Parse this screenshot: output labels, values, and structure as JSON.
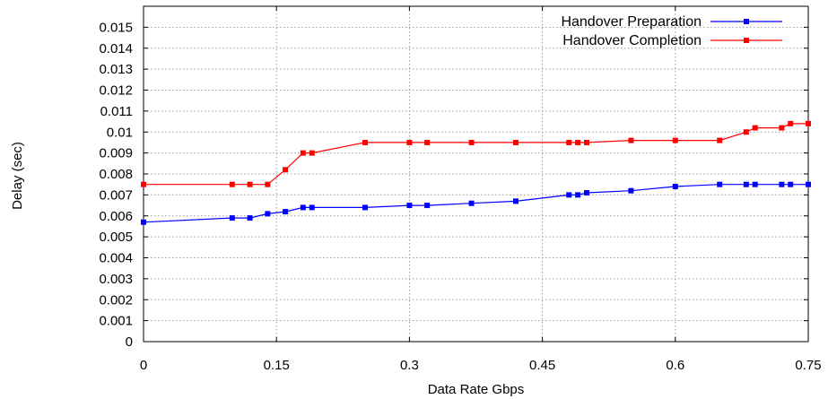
{
  "chart_data": {
    "type": "line",
    "title": "",
    "xlabel": "Data Rate Gbps",
    "ylabel": "Delay (sec)",
    "xlim": [
      0,
      0.75
    ],
    "ylim": [
      0,
      0.016
    ],
    "x_ticks": [
      "0",
      "0.15",
      "0.3",
      "0.45",
      "0.6",
      "0.75"
    ],
    "y_ticks": [
      "0",
      "0.001",
      "0.002",
      "0.003",
      "0.004",
      "0.005",
      "0.006",
      "0.007",
      "0.008",
      "0.009",
      "0.01",
      "0.011",
      "0.012",
      "0.013",
      "0.014",
      "0.015"
    ],
    "grid": true,
    "legend_position": "top-right",
    "series": [
      {
        "name": "Handover Preparation",
        "color": "#0000ff",
        "x": [
          0,
          0.1,
          0.12,
          0.14,
          0.16,
          0.18,
          0.19,
          0.25,
          0.3,
          0.32,
          0.37,
          0.42,
          0.48,
          0.49,
          0.5,
          0.55,
          0.6,
          0.65,
          0.68,
          0.69,
          0.72,
          0.73,
          0.75
        ],
        "y": [
          0.0057,
          0.0059,
          0.0059,
          0.0061,
          0.0062,
          0.0064,
          0.0064,
          0.0064,
          0.0065,
          0.0065,
          0.0066,
          0.0067,
          0.007,
          0.007,
          0.0071,
          0.0072,
          0.0074,
          0.0075,
          0.0075,
          0.0075,
          0.0075,
          0.0075,
          0.0075
        ]
      },
      {
        "name": "Handover Completion",
        "color": "#ff0000",
        "x": [
          0,
          0.1,
          0.12,
          0.14,
          0.16,
          0.18,
          0.19,
          0.25,
          0.3,
          0.32,
          0.37,
          0.42,
          0.48,
          0.49,
          0.5,
          0.55,
          0.6,
          0.65,
          0.68,
          0.69,
          0.72,
          0.73,
          0.75
        ],
        "y": [
          0.0075,
          0.0075,
          0.0075,
          0.0075,
          0.0082,
          0.009,
          0.009,
          0.0095,
          0.0095,
          0.0095,
          0.0095,
          0.0095,
          0.0095,
          0.0095,
          0.0095,
          0.0096,
          0.0096,
          0.0096,
          0.01,
          0.0102,
          0.0102,
          0.0104,
          0.0104
        ]
      }
    ]
  }
}
